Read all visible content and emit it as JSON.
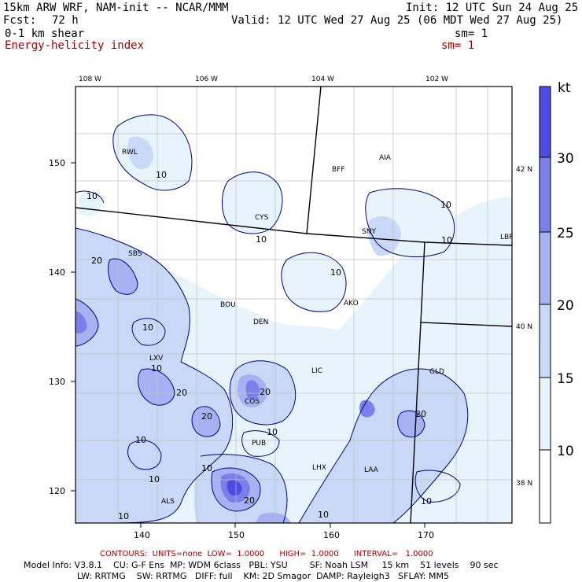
{
  "header": {
    "model": "15km ARW WRF, NAM-init -- NCAR/MMM",
    "init": "Init: 12 UTC Sun 24 Aug 25",
    "fcst_label": "Fcst:",
    "fcst_value": "72 h",
    "valid": "Valid: 12 UTC Wed 27 Aug 25 (06 MDT Wed 27 Aug 25)",
    "field1": "0-1 km shear",
    "field1_sm": "sm= 1",
    "field2": "Energy-helicity index",
    "field2_sm": "sm= 1"
  },
  "colorbar": {
    "unit": "kt",
    "ticks": [
      "30",
      "25",
      "20",
      "15",
      "10"
    ],
    "colors": [
      "#ffffff",
      "#e8f4fc",
      "#c9d8f6",
      "#a6b2f1",
      "#7b7eeb",
      "#4c4ce5"
    ]
  },
  "top_lon_labels": [
    "108 W",
    "106 W",
    "104 W",
    "102 W"
  ],
  "right_lat_labels": [
    "42 N",
    "40 N",
    "38 N"
  ],
  "left_grid_labels": [
    "150",
    "140",
    "130",
    "120"
  ],
  "bottom_grid_labels": [
    "140",
    "150",
    "160",
    "170"
  ],
  "stations": [
    "RWL",
    "BFF",
    "AIA",
    "CYS",
    "SNY",
    "LBF",
    "SBS",
    "BOU",
    "AKO",
    "DEN",
    "LXV",
    "LIC",
    "GLD",
    "COS",
    "PUB",
    "LHX",
    "LAA",
    "ALS"
  ],
  "contour_labels": [
    "10",
    "10",
    "10",
    "10",
    "10",
    "10",
    "10",
    "10",
    "10",
    "10",
    "10",
    "10",
    "10",
    "10",
    "10",
    "20",
    "20",
    "20",
    "20",
    "20",
    "20"
  ],
  "footer": {
    "contours_line": "CONTOURS:  UNITS=none  LOW=  1.0000      HIGH=  1.0000      INTERVAL=   1.0000",
    "model_info": "Model Info: V3.8.1    CU: G-F Ens  MP: WDM 6class   PBL: YSU        SF: Noah LSM     15 km    51 levels    90 sec",
    "physics": "LW: RRTMG    SW: RRTMG   DIFF: full    KM: 2D Smagor  DAMP: Rayleigh3   SFLAY: MM5"
  }
}
